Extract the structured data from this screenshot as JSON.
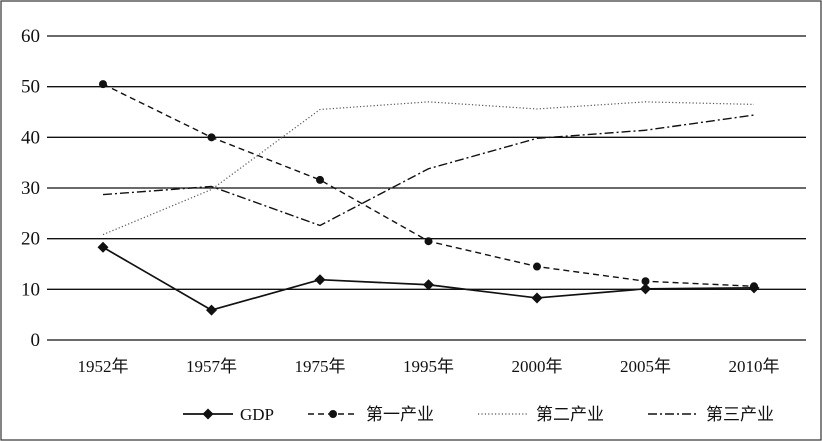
{
  "chart_data": {
    "type": "line",
    "title": "",
    "xlabel": "",
    "ylabel": "",
    "categories": [
      "1952年",
      "1957年",
      "1975年",
      "1995年",
      "2000年",
      "2005年",
      "2010年"
    ],
    "ylim": [
      0,
      60
    ],
    "yticks": [
      "0",
      "10",
      "20",
      "30",
      "40",
      "50",
      "60"
    ],
    "grid": "horizontal",
    "legend_position": "bottom",
    "series": [
      {
        "name": "GDP",
        "values": [
          18.3,
          5.9,
          11.9,
          10.9,
          8.3,
          10.1,
          10.3
        ],
        "style": "solid",
        "marker": "diamond"
      },
      {
        "name": "第一产业",
        "values": [
          50.5,
          40.0,
          31.6,
          19.5,
          14.5,
          11.6,
          10.6
        ],
        "style": "dashed",
        "marker": "circle"
      },
      {
        "name": "第二产业",
        "values": [
          20.8,
          29.7,
          45.5,
          47.0,
          45.6,
          47.0,
          46.5
        ],
        "style": "dotted",
        "marker": "none"
      },
      {
        "name": "第三产业",
        "values": [
          28.7,
          30.3,
          22.6,
          33.8,
          39.8,
          41.4,
          44.4
        ],
        "style": "dashdot",
        "marker": "none"
      }
    ],
    "colors": {
      "line": "#111111",
      "grid": "#111111",
      "background": "#ffffff"
    }
  }
}
